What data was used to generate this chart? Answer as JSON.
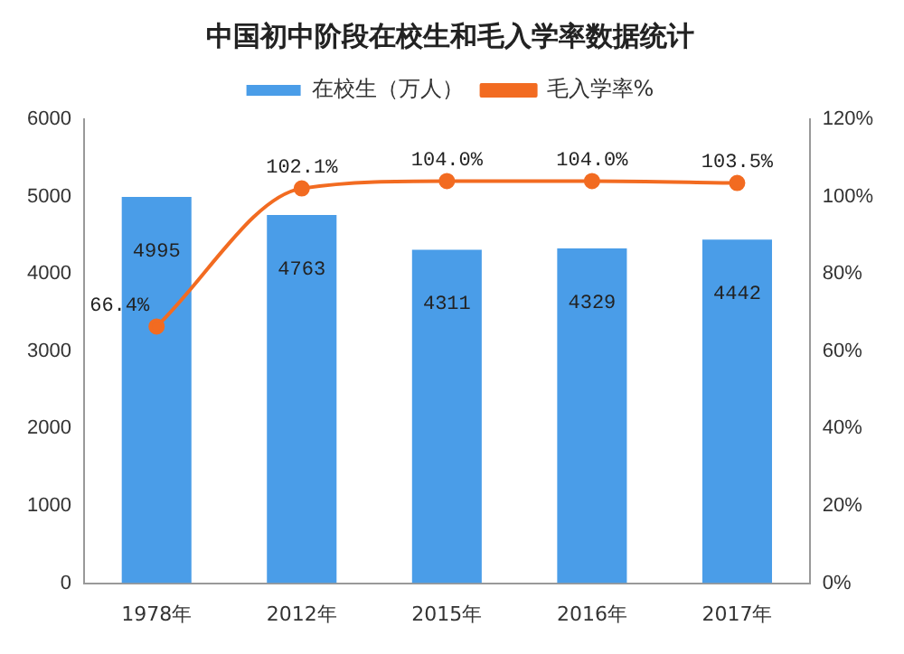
{
  "chart_data": {
    "type": "bar",
    "title": "中国初中阶段在校生和毛入学率数据统计",
    "categories": [
      "1978年",
      "2012年",
      "2015年",
      "2016年",
      "2017年"
    ],
    "series": [
      {
        "name": "在校生（万人）",
        "color": "#4a9de8",
        "values": [
          4995,
          4763,
          4311,
          4329,
          4442
        ],
        "value_labels": [
          "4995",
          "4763",
          "4311",
          "4329",
          "4442"
        ]
      },
      {
        "name": "毛入学率%",
        "type": "line",
        "axis": "y2",
        "color": "#f26b21",
        "values": [
          66.4,
          102.1,
          104.0,
          104.0,
          103.5
        ],
        "value_labels": [
          "66.4%",
          "102.1%",
          "104.0%",
          "104.0%",
          "103.5%"
        ]
      }
    ],
    "ylim": [
      0,
      6000
    ],
    "yticks": [
      0,
      1000,
      2000,
      3000,
      4000,
      5000,
      6000
    ],
    "y2lim": [
      0,
      120
    ],
    "y2ticks": [
      {
        "value": 0,
        "label": "0%"
      },
      {
        "value": 20,
        "label": "20%"
      },
      {
        "value": 40,
        "label": "40%"
      },
      {
        "value": 60,
        "label": "60%"
      },
      {
        "value": 80,
        "label": "80%"
      },
      {
        "value": 100,
        "label": "100%"
      },
      {
        "value": 120,
        "label": "120%"
      }
    ],
    "grid": false,
    "legend": "top",
    "marker": "circle"
  }
}
